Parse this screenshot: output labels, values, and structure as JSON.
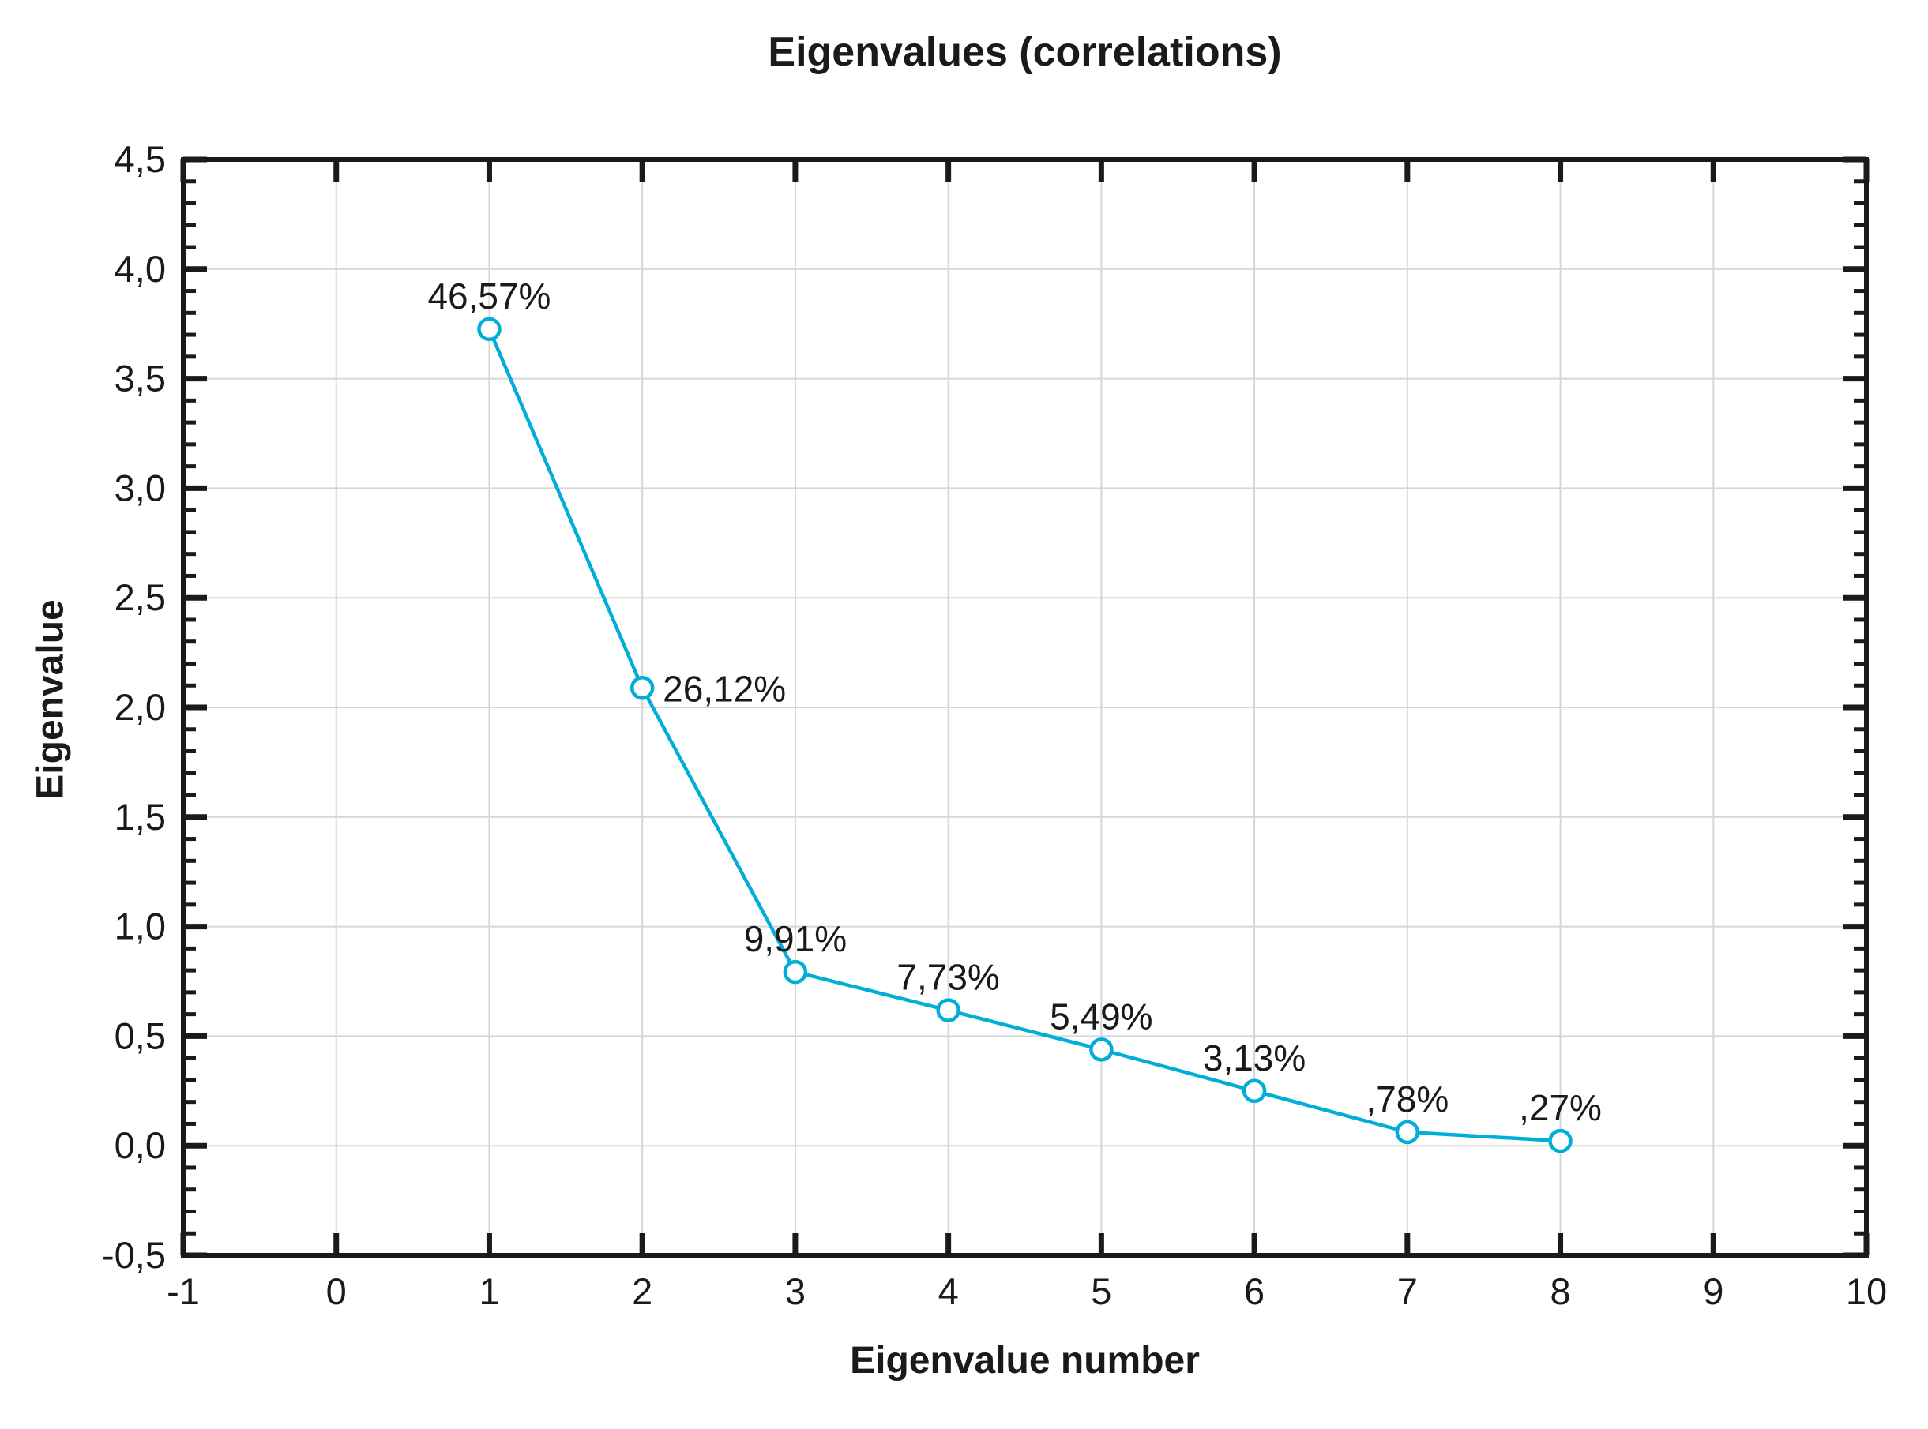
{
  "chart_data": {
    "type": "line",
    "title": "Eigenvalues (correlations)",
    "xlabel": "Eigenvalue number",
    "ylabel": "Eigenvalue",
    "x": [
      1,
      2,
      3,
      4,
      5,
      6,
      7,
      8
    ],
    "values": [
      3.726,
      2.089,
      0.793,
      0.618,
      0.439,
      0.25,
      0.062,
      0.022
    ],
    "point_labels": [
      "46,57%",
      "26,12%",
      "9,91%",
      "7,73%",
      "5,49%",
      "3,13%",
      ",78%",
      ",27%"
    ],
    "point_label_positions": [
      "above",
      "right",
      "above",
      "above",
      "above",
      "above",
      "above",
      "above"
    ],
    "xlim": [
      -1,
      10
    ],
    "ylim": [
      -0.5,
      4.5
    ],
    "x_ticks": [
      -1,
      0,
      1,
      2,
      3,
      4,
      5,
      6,
      7,
      8,
      9,
      10
    ],
    "x_tick_labels": [
      "-1",
      "0",
      "1",
      "2",
      "3",
      "4",
      "5",
      "6",
      "7",
      "8",
      "9",
      "10"
    ],
    "y_ticks": [
      -0.5,
      0,
      0.5,
      1,
      1.5,
      2,
      2.5,
      3,
      3.5,
      4,
      4.5
    ],
    "y_tick_labels": [
      "-0,5",
      "0,0",
      "0,5",
      "1,0",
      "1,5",
      "2,0",
      "2,5",
      "3,0",
      "3,5",
      "4,0",
      "4,5"
    ],
    "y_minor_tick_step": 0.1,
    "grid": true,
    "legend": "none",
    "line_color": "#00aed8",
    "marker": "open-circle",
    "marker_fill": "#ffffff",
    "grid_color": "#d6d6d6",
    "axis_color": "#1a1a1a",
    "text_color": "#1a1a1a"
  }
}
